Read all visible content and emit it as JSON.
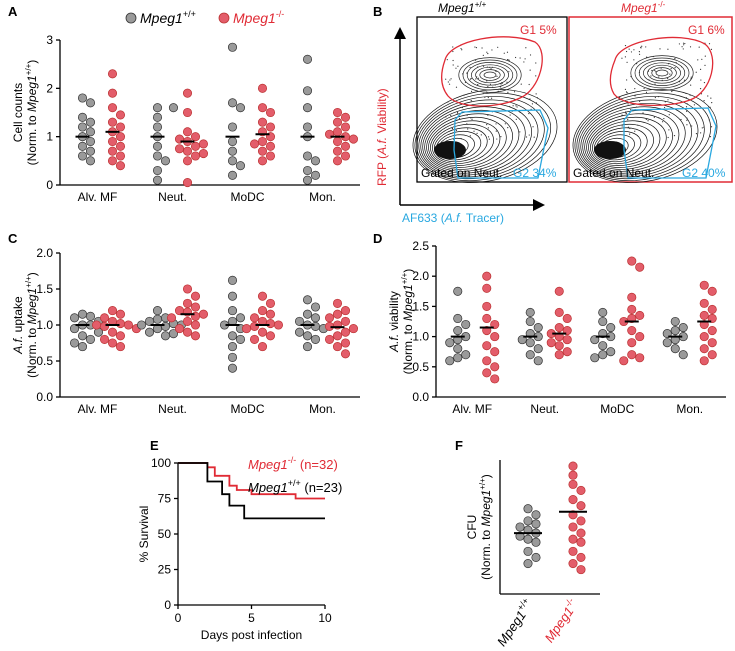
{
  "colors": {
    "wt": "#9a9a9a",
    "ko": "#e35d6a",
    "red": "#e02b35",
    "blue": "#29a8e0",
    "black": "#000000"
  },
  "legend": {
    "wt": "Mpeg1",
    "wt_sup": "+/+",
    "ko": "Mpeg1",
    "ko_sup": "-/-"
  },
  "panels": {
    "A": "A",
    "B": "B",
    "C": "C",
    "D": "D",
    "E": "E",
    "F": "F"
  },
  "flow": {
    "wt_title": "Mpeg1",
    "wt_title_sup": "+/+",
    "ko_title": "Mpeg1",
    "ko_title_sup": "-/-",
    "wt_g1": "G1 5%",
    "wt_g2": "G2 34%",
    "ko_g1": "G1 6%",
    "ko_g2": "G2 40%",
    "gated_wt": "Gated on Neut.",
    "gated_ko": "Gated on Neut.",
    "y_axis_pre": "RFP (",
    "y_axis_ital": "A.f.",
    "y_axis_post": " Viability)",
    "x_axis_pre": "AF633 (",
    "x_axis_ital": "A.f.",
    "x_axis_post": " Tracer)"
  },
  "chart_data": [
    {
      "id": "A",
      "type": "scatter",
      "ylabel_line1": "Cell counts",
      "ylabel_line2": "(Norm. to Mpeg1+/+)",
      "categories": [
        "Alv. MF",
        "Neut.",
        "MoDC",
        "Mon."
      ],
      "ylim": [
        0,
        3
      ],
      "yticks": [
        0,
        1,
        2,
        3
      ],
      "series": [
        {
          "name": "Mpeg1+/+",
          "values": [
            [
              1.8,
              1.7,
              1.4,
              1.3,
              1.2,
              1.1,
              1.0,
              0.9,
              0.8,
              0.7,
              0.6,
              0.5
            ],
            [
              1.6,
              1.6,
              1.4,
              1.2,
              1.0,
              0.8,
              0.6,
              0.5,
              0.3,
              0.1
            ],
            [
              2.85,
              1.7,
              1.6,
              1.2,
              0.9,
              0.7,
              0.5,
              0.4,
              0.2
            ],
            [
              2.6,
              1.95,
              1.6,
              1.2,
              1.0,
              0.6,
              0.5,
              0.3,
              0.2,
              0.1
            ]
          ],
          "medians": [
            1.0,
            1.0,
            1.0,
            1.0
          ]
        },
        {
          "name": "Mpeg1-/-",
          "values": [
            [
              2.3,
              1.9,
              1.6,
              1.45,
              1.3,
              1.2,
              1.1,
              1.0,
              0.9,
              0.8,
              0.7,
              0.6,
              0.5,
              0.4
            ],
            [
              1.9,
              1.5,
              1.1,
              1.0,
              0.95,
              0.9,
              0.85,
              0.8,
              0.75,
              0.7,
              0.65,
              0.6,
              0.5,
              0.05
            ],
            [
              2.0,
              1.6,
              1.5,
              1.3,
              1.2,
              1.1,
              1.0,
              0.9,
              0.85,
              0.8,
              0.7,
              0.6,
              0.5
            ],
            [
              1.5,
              1.4,
              1.3,
              1.2,
              1.1,
              1.05,
              1.0,
              0.95,
              0.9,
              0.8,
              0.7,
              0.6,
              0.5
            ]
          ],
          "medians": [
            1.1,
            0.9,
            1.05,
            1.0
          ]
        }
      ]
    },
    {
      "id": "C",
      "type": "scatter",
      "ylabel_line1": "A.f. uptake",
      "ylabel_line2": "(Norm. to Mpeg1+/+)",
      "categories": [
        "Alv. MF",
        "Neut.",
        "MoDC",
        "Mon."
      ],
      "ylim": [
        0,
        2
      ],
      "yticks": [
        0.0,
        0.5,
        1.0,
        1.5,
        2.0
      ],
      "series": [
        {
          "name": "Mpeg1+/+",
          "values": [
            [
              1.15,
              1.12,
              1.1,
              1.05,
              1.0,
              1.0,
              0.95,
              0.9,
              0.85,
              0.8,
              0.75,
              0.7
            ],
            [
              1.2,
              1.1,
              1.08,
              1.05,
              1.02,
              1.0,
              1.0,
              0.98,
              0.95,
              0.9,
              0.88,
              0.85
            ],
            [
              1.62,
              1.4,
              1.2,
              1.1,
              1.05,
              1.0,
              0.95,
              0.85,
              0.8,
              0.7,
              0.55,
              0.4
            ],
            [
              1.35,
              1.25,
              1.15,
              1.1,
              1.05,
              1.0,
              0.98,
              0.95,
              0.9,
              0.85,
              0.8,
              0.7
            ]
          ],
          "medians": [
            1.0,
            1.0,
            1.0,
            1.0
          ]
        },
        {
          "name": "Mpeg1-/-",
          "values": [
            [
              1.2,
              1.15,
              1.1,
              1.05,
              1.02,
              1.0,
              1.0,
              0.98,
              0.95,
              0.9,
              0.85,
              0.8,
              0.75,
              0.7
            ],
            [
              1.5,
              1.4,
              1.3,
              1.25,
              1.2,
              1.18,
              1.15,
              1.12,
              1.1,
              1.05,
              1.0,
              0.95,
              0.9,
              0.85
            ],
            [
              1.4,
              1.3,
              1.2,
              1.15,
              1.1,
              1.05,
              1.02,
              1.0,
              0.98,
              0.95,
              0.9,
              0.85,
              0.8,
              0.7
            ],
            [
              1.3,
              1.2,
              1.15,
              1.1,
              1.05,
              1.0,
              0.98,
              0.95,
              0.9,
              0.85,
              0.8,
              0.75,
              0.7,
              0.6
            ]
          ],
          "medians": [
            1.0,
            1.15,
            1.0,
            0.97
          ]
        }
      ]
    },
    {
      "id": "D",
      "type": "scatter",
      "ylabel_line1": "A.f. viability",
      "ylabel_line2": "(Norm. to Mpeg1+/+)",
      "categories": [
        "Alv. MF",
        "Neut.",
        "MoDC",
        "Mon."
      ],
      "ylim": [
        0,
        2.5
      ],
      "yticks": [
        0.0,
        0.5,
        1.0,
        1.5,
        2.0,
        2.5
      ],
      "series": [
        {
          "name": "Mpeg1+/+",
          "values": [
            [
              1.75,
              1.3,
              1.2,
              1.1,
              1.0,
              0.95,
              0.9,
              0.8,
              0.7,
              0.65,
              0.6
            ],
            [
              1.4,
              1.25,
              1.15,
              1.05,
              1.0,
              0.95,
              0.9,
              0.8,
              0.7,
              0.6
            ],
            [
              1.4,
              1.25,
              1.15,
              1.05,
              1.0,
              0.95,
              0.85,
              0.75,
              0.7,
              0.65
            ],
            [
              1.25,
              1.15,
              1.1,
              1.05,
              1.0,
              0.95,
              0.9,
              0.8,
              0.7
            ]
          ],
          "medians": [
            1.0,
            1.0,
            1.0,
            1.0
          ]
        },
        {
          "name": "Mpeg1-/-",
          "values": [
            [
              2.0,
              1.8,
              1.5,
              1.3,
              1.2,
              1.1,
              1.0,
              0.85,
              0.75,
              0.6,
              0.5,
              0.4,
              0.3
            ],
            [
              1.75,
              1.4,
              1.3,
              1.15,
              1.1,
              1.05,
              1.0,
              0.95,
              0.9,
              0.85,
              0.75,
              0.7
            ],
            [
              2.25,
              2.15,
              1.65,
              1.45,
              1.35,
              1.3,
              1.25,
              1.1,
              1.0,
              0.9,
              0.7,
              0.65,
              0.6
            ],
            [
              1.85,
              1.75,
              1.55,
              1.45,
              1.35,
              1.3,
              1.2,
              1.1,
              1.0,
              0.9,
              0.8,
              0.7,
              0.6
            ]
          ],
          "medians": [
            1.15,
            1.05,
            1.25,
            1.25
          ]
        }
      ]
    },
    {
      "id": "E",
      "type": "line",
      "xlabel": "Days post infection",
      "ylabel": "% Survival",
      "xlim": [
        0,
        10
      ],
      "ylim": [
        0,
        100
      ],
      "xticks": [
        0,
        5,
        10
      ],
      "yticks": [
        0,
        25,
        50,
        75,
        100
      ],
      "series": [
        {
          "name": "Mpeg1-/-",
          "n": "(n=32)",
          "steps": [
            [
              0,
              100
            ],
            [
              2,
              100
            ],
            [
              2,
              97
            ],
            [
              2.5,
              97
            ],
            [
              2.5,
              91
            ],
            [
              3.5,
              91
            ],
            [
              3.5,
              84
            ],
            [
              4,
              84
            ],
            [
              4,
              81
            ],
            [
              5,
              81
            ],
            [
              5,
              78
            ],
            [
              8,
              78
            ],
            [
              8,
              75
            ],
            [
              10,
              75
            ]
          ]
        },
        {
          "name": "Mpeg1+/+",
          "n": "(n=23)",
          "steps": [
            [
              0,
              100
            ],
            [
              2,
              100
            ],
            [
              2,
              87
            ],
            [
              3,
              87
            ],
            [
              3,
              78
            ],
            [
              3.5,
              78
            ],
            [
              3.5,
              70
            ],
            [
              4.5,
              70
            ],
            [
              4.5,
              61
            ],
            [
              10,
              61
            ]
          ]
        }
      ]
    },
    {
      "id": "F",
      "type": "scatter",
      "ylabel_line1": "CFU",
      "ylabel_line2": "(Norm. to Mpeg1+/+)",
      "categories": [
        "Mpeg1+/+",
        "Mpeg1-/-"
      ],
      "ylim": [
        0,
        2.2
      ],
      "series": [
        {
          "name": "Mpeg1+/+",
          "values": [
            1.4,
            1.3,
            1.2,
            1.15,
            1.1,
            1.05,
            1.0,
            0.95,
            0.9,
            0.85,
            0.7,
            0.6,
            0.5
          ],
          "median": 1.0
        },
        {
          "name": "Mpeg1-/-",
          "values": [
            2.1,
            1.95,
            1.8,
            1.7,
            1.55,
            1.45,
            1.3,
            1.2,
            1.1,
            1.0,
            0.9,
            0.85,
            0.7,
            0.6,
            0.5,
            0.4
          ],
          "median": 1.35
        }
      ]
    }
  ]
}
